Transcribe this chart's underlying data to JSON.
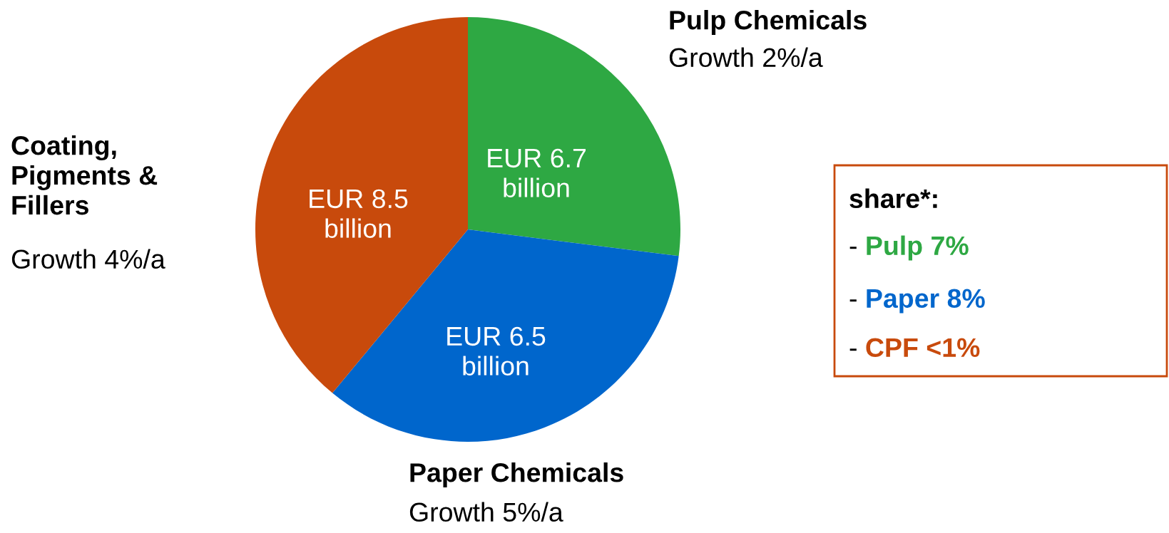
{
  "chart_data": {
    "type": "pie",
    "categories": [
      "Pulp Chemicals",
      "Paper Chemicals",
      "Coating, Pigments & Fillers"
    ],
    "values": [
      27,
      34,
      39
    ],
    "colors": [
      "#2ea843",
      "#0066cc",
      "#c84a0c"
    ],
    "value_labels": [
      "EUR 6.7 billion",
      "EUR 6.5 billion",
      "EUR 8.5 billion"
    ],
    "annotations": [
      "Growth 2%/a",
      "Growth 5%/a",
      "Growth 4%/a",
      "share*:",
      "- Pulp 7%",
      "- Paper 8%",
      "- CPF <1%"
    ],
    "legend": false
  }
}
